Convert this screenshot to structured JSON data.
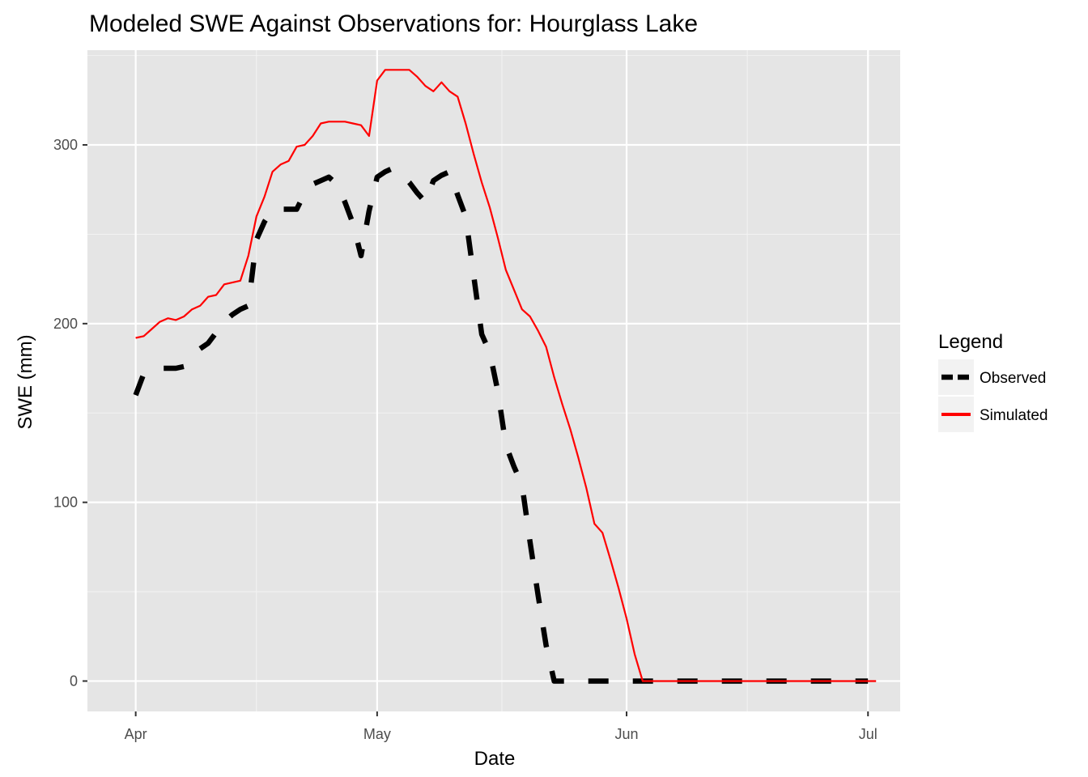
{
  "chart_data": {
    "type": "line",
    "title": "Modeled SWE Against Observations for: Hourglass Lake",
    "xlabel": "Date",
    "ylabel": "SWE (mm)",
    "x_axis": {
      "type": "date",
      "ticks": [
        {
          "date": "2017-04-01",
          "label": "Apr"
        },
        {
          "date": "2017-05-01",
          "label": "May"
        },
        {
          "date": "2017-06-01",
          "label": "Jun"
        },
        {
          "date": "2017-07-01",
          "label": "Jul"
        }
      ],
      "range": [
        "2017-03-26",
        "2017-07-05"
      ]
    },
    "y_axis": {
      "ticks": [
        0,
        100,
        200,
        300
      ],
      "range": [
        -17,
        353
      ]
    },
    "grid": true,
    "legend": {
      "title": "Legend",
      "position": "right",
      "entries": [
        {
          "label": "Observed",
          "color": "#000000",
          "style": "dashed"
        },
        {
          "label": "Simulated",
          "color": "#ff0000",
          "style": "solid"
        }
      ]
    },
    "series": [
      {
        "name": "Observed",
        "color": "#000000",
        "dash": true,
        "x": [
          "2017-04-01",
          "2017-04-02",
          "2017-04-03",
          "2017-04-04",
          "2017-04-05",
          "2017-04-06",
          "2017-04-07",
          "2017-04-08",
          "2017-04-09",
          "2017-04-10",
          "2017-04-11",
          "2017-04-12",
          "2017-04-13",
          "2017-04-14",
          "2017-04-15",
          "2017-04-16",
          "2017-04-17",
          "2017-04-18",
          "2017-04-19",
          "2017-04-20",
          "2017-04-21",
          "2017-04-22",
          "2017-04-23",
          "2017-04-24",
          "2017-04-25",
          "2017-04-26",
          "2017-04-27",
          "2017-04-28",
          "2017-04-29",
          "2017-04-30",
          "2017-05-01",
          "2017-05-02",
          "2017-05-03",
          "2017-05-04",
          "2017-05-05",
          "2017-05-06",
          "2017-05-07",
          "2017-05-08",
          "2017-05-09",
          "2017-05-10",
          "2017-05-11",
          "2017-05-12",
          "2017-05-13",
          "2017-05-14",
          "2017-05-15",
          "2017-05-16",
          "2017-05-17",
          "2017-05-18",
          "2017-05-19",
          "2017-05-20",
          "2017-05-21",
          "2017-05-22",
          "2017-05-23",
          "2017-05-24",
          "2017-05-25",
          "2017-05-26",
          "2017-05-27",
          "2017-05-28",
          "2017-05-29",
          "2017-05-30",
          "2017-05-31",
          "2017-06-01",
          "2017-06-02",
          "2017-06-03",
          "2017-06-04",
          "2017-06-05",
          "2017-06-06",
          "2017-06-07",
          "2017-06-08",
          "2017-06-09",
          "2017-06-10",
          "2017-06-11",
          "2017-06-12",
          "2017-06-13",
          "2017-06-14",
          "2017-06-15",
          "2017-06-16",
          "2017-06-17",
          "2017-06-18",
          "2017-06-19",
          "2017-06-20",
          "2017-06-21",
          "2017-06-22",
          "2017-06-23",
          "2017-06-24",
          "2017-06-25",
          "2017-06-26",
          "2017-06-27",
          "2017-06-28",
          "2017-06-29",
          "2017-06-30",
          "2017-07-01"
        ],
        "values": [
          160,
          172,
          175,
          175,
          175,
          175,
          176,
          181,
          186,
          189,
          195,
          201,
          205,
          208,
          210,
          247,
          257,
          264,
          264,
          264,
          264,
          273,
          278,
          280,
          282,
          278,
          268,
          256,
          238,
          263,
          282,
          285,
          287,
          283,
          279,
          273,
          268,
          280,
          283,
          285,
          272,
          260,
          227,
          194,
          184,
          162,
          132,
          120,
          110,
          78,
          48,
          20,
          0,
          0,
          0,
          0,
          0,
          0,
          0,
          0,
          0,
          0,
          0,
          0,
          0,
          0,
          0,
          0,
          0,
          0,
          0,
          0,
          0,
          0,
          0,
          0,
          0,
          0,
          0,
          0,
          0,
          0,
          0,
          0,
          0,
          0,
          0,
          0,
          0,
          0,
          0,
          0
        ]
      },
      {
        "name": "Simulated",
        "color": "#ff0000",
        "dash": false,
        "x": [
          "2017-04-01",
          "2017-04-02",
          "2017-04-03",
          "2017-04-04",
          "2017-04-05",
          "2017-04-06",
          "2017-04-07",
          "2017-04-08",
          "2017-04-09",
          "2017-04-10",
          "2017-04-11",
          "2017-04-12",
          "2017-04-13",
          "2017-04-14",
          "2017-04-15",
          "2017-04-16",
          "2017-04-17",
          "2017-04-18",
          "2017-04-19",
          "2017-04-20",
          "2017-04-21",
          "2017-04-22",
          "2017-04-23",
          "2017-04-24",
          "2017-04-25",
          "2017-04-26",
          "2017-04-27",
          "2017-04-28",
          "2017-04-29",
          "2017-04-30",
          "2017-05-01",
          "2017-05-02",
          "2017-05-03",
          "2017-05-04",
          "2017-05-05",
          "2017-05-06",
          "2017-05-07",
          "2017-05-08",
          "2017-05-09",
          "2017-05-10",
          "2017-05-11",
          "2017-05-12",
          "2017-05-13",
          "2017-05-14",
          "2017-05-15",
          "2017-05-16",
          "2017-05-17",
          "2017-05-18",
          "2017-05-19",
          "2017-05-20",
          "2017-05-21",
          "2017-05-22",
          "2017-05-23",
          "2017-05-24",
          "2017-05-25",
          "2017-05-26",
          "2017-05-27",
          "2017-05-28",
          "2017-05-29",
          "2017-05-30",
          "2017-05-31",
          "2017-06-01",
          "2017-06-02",
          "2017-06-03",
          "2017-06-04",
          "2017-06-05",
          "2017-06-06",
          "2017-06-07",
          "2017-06-08",
          "2017-06-09",
          "2017-06-10",
          "2017-06-11",
          "2017-06-12",
          "2017-06-13",
          "2017-06-14",
          "2017-06-15",
          "2017-06-16",
          "2017-06-17",
          "2017-06-18",
          "2017-06-19",
          "2017-06-20",
          "2017-06-21",
          "2017-06-22",
          "2017-06-23",
          "2017-06-24",
          "2017-06-25",
          "2017-06-26",
          "2017-06-27",
          "2017-06-28",
          "2017-06-29",
          "2017-06-30",
          "2017-07-01",
          "2017-07-02"
        ],
        "values": [
          192,
          193,
          197,
          201,
          203,
          202,
          204,
          208,
          210,
          215,
          216,
          222,
          223,
          224,
          238,
          260,
          271,
          285,
          289,
          291,
          299,
          300,
          305,
          312,
          313,
          313,
          313,
          312,
          311,
          305,
          336,
          342,
          342,
          342,
          342,
          338,
          333,
          330,
          335,
          330,
          327,
          312,
          295,
          279,
          265,
          248,
          230,
          219,
          208,
          204,
          196,
          187,
          170,
          155,
          141,
          125,
          108,
          88,
          83,
          68,
          52,
          35,
          15,
          0,
          0,
          0,
          0,
          0,
          0,
          0,
          0,
          0,
          0,
          0,
          0,
          0,
          0,
          0,
          0,
          0,
          0,
          0,
          0,
          0,
          0,
          0,
          0,
          0,
          0,
          0,
          0,
          0,
          0
        ]
      }
    ]
  }
}
